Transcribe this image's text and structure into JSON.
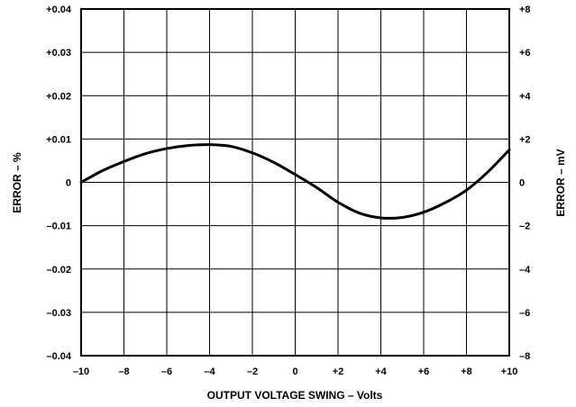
{
  "chart_data": {
    "type": "line",
    "title": "",
    "xlabel": "OUTPUT VOLTAGE SWING – Volts",
    "ylabel_left": "ERROR – %",
    "ylabel_right": "ERROR – mV",
    "xlim": [
      -10,
      10
    ],
    "ylim_left": [
      -0.04,
      0.04
    ],
    "ylim_right": [
      -8,
      8
    ],
    "grid": true,
    "x_tick_labels": [
      "–10",
      "–8",
      "–6",
      "–4",
      "–2",
      "0",
      "+2",
      "+4",
      "+6",
      "+8",
      "+10"
    ],
    "y_left_tick_labels": [
      "+0.04",
      "+0.03",
      "+0.02",
      "+0.01",
      "0",
      "–0.01",
      "–0.02",
      "–0.03",
      "–0.04"
    ],
    "y_right_tick_labels": [
      "+8",
      "+6",
      "+4",
      "+2",
      "0",
      "–2",
      "–4",
      "–6",
      "–8"
    ],
    "series": [
      {
        "x": [
          -10,
          -9,
          -8,
          -7,
          -6,
          -5,
          -4,
          -3,
          -2,
          -1,
          0,
          1,
          2,
          3,
          4,
          5,
          6,
          7,
          8,
          9,
          10
        ],
        "y": [
          0.0,
          0.0027,
          0.0048,
          0.0066,
          0.0078,
          0.0085,
          0.0087,
          0.0083,
          0.0068,
          0.0046,
          0.0018,
          -0.0012,
          -0.0046,
          -0.0071,
          -0.0082,
          -0.0081,
          -0.0069,
          -0.0047,
          -0.0018,
          0.0024,
          0.0075
        ]
      }
    ]
  }
}
